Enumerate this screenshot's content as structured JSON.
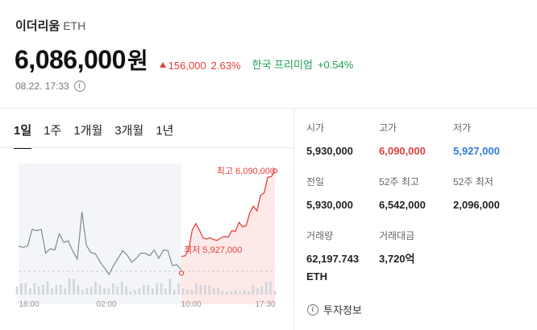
{
  "header": {
    "coin_name": "이더리움",
    "coin_symbol": "ETH",
    "price": "6,086,000",
    "price_unit": "원",
    "change_amount": "156,000",
    "change_percent": "2.63%",
    "premium_label": "한국 프리미엄",
    "premium_value": "+0.54%",
    "timestamp": "08.22. 17:33",
    "info_icon": "info-circle-icon"
  },
  "tabs": [
    {
      "label": "1일",
      "active": true
    },
    {
      "label": "1주",
      "active": false
    },
    {
      "label": "1개월",
      "active": false
    },
    {
      "label": "3개월",
      "active": false
    },
    {
      "label": "1년",
      "active": false
    }
  ],
  "stats": [
    {
      "label": "시가",
      "value": "5,930,000",
      "tone": "normal"
    },
    {
      "label": "고가",
      "value": "6,090,000",
      "tone": "up"
    },
    {
      "label": "저가",
      "value": "5,927,000",
      "tone": "down"
    },
    {
      "label": "전일",
      "value": "5,930,000",
      "tone": "normal"
    },
    {
      "label": "52주 최고",
      "value": "6,542,000",
      "tone": "normal"
    },
    {
      "label": "52주 최저",
      "value": "2,096,000",
      "tone": "normal"
    },
    {
      "label": "거래량",
      "value": "62,197.743 ETH",
      "tone": "normal"
    },
    {
      "label": "거래대금",
      "value": "3,720억",
      "tone": "normal"
    }
  ],
  "invest_info_label": "투자정보",
  "colors": {
    "up": "#e1413b",
    "down": "#2d7dd2",
    "prev_line": "#7d8a99",
    "premium": "#1f9b5a"
  },
  "chart_data": {
    "type": "line",
    "x_ticks": [
      "18:00",
      "02:00",
      "10:00",
      "17:30"
    ],
    "high_label": "최고 6,090,000",
    "low_label": "최저 5,927,000",
    "previous_close": 5930000,
    "ylim": [
      5895000,
      6095000
    ],
    "series": [
      {
        "segment": "previous",
        "values": [
          5969000,
          5967000,
          5969000,
          5995000,
          5993000,
          5995000,
          5958000,
          5965000,
          5963000,
          5988000,
          5975000,
          5977000,
          5961000,
          5949000,
          6022000,
          5970000,
          5959000,
          5957000,
          5945000,
          5935000,
          5925000,
          5939000,
          5950000,
          5962000,
          5955000,
          5944000,
          5950000,
          5958000,
          5958000,
          5954000,
          5963000,
          5950000,
          5963000,
          5962000,
          5939000,
          5940000,
          5932000
        ]
      },
      {
        "segment": "today",
        "values": [
          5953000,
          5954000,
          5963000,
          5994000,
          6004000,
          5994000,
          5982000,
          5980000,
          5982000,
          5979000,
          5978000,
          5982000,
          5984000,
          5983000,
          5993000,
          5992000,
          6006000,
          5999000,
          6001000,
          6021000,
          6031000,
          6024000,
          6048000,
          6052000,
          6076000,
          6077000,
          6086000
        ]
      }
    ],
    "volume": [
      5,
      7,
      7,
      4,
      7,
      5,
      6,
      8,
      4,
      6,
      6,
      4,
      10,
      10,
      6,
      3,
      4,
      5,
      8,
      6,
      4,
      4,
      7,
      5,
      8,
      5,
      2,
      3,
      4,
      6,
      6,
      4,
      7,
      7,
      4,
      10,
      3,
      7,
      4,
      3,
      3,
      7,
      6,
      6,
      6,
      4,
      4,
      2,
      2,
      2,
      3,
      2,
      3,
      2,
      6,
      4,
      5,
      8,
      8,
      2
    ]
  }
}
